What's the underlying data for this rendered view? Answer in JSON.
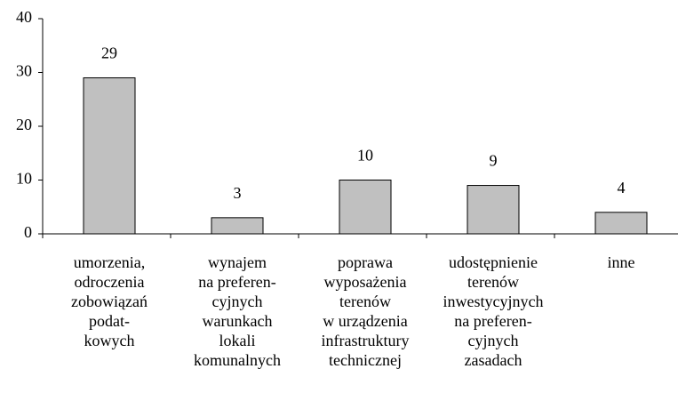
{
  "chart_data": {
    "type": "bar",
    "categories": [
      [
        "umorzenia,",
        "odroczenia",
        "zobowiązań",
        "podat-",
        "kowych"
      ],
      [
        "wynajem",
        "na preferen-",
        "cyjnych",
        "warunkach",
        "lokali",
        "komunalnych"
      ],
      [
        "poprawa",
        "wyposażenia",
        "terenów",
        "w urządzenia",
        "infrastruktury",
        "technicznej"
      ],
      [
        "udostępnienie",
        "terenów",
        "inwestycyjnych",
        "na preferen-",
        "cyjnych",
        "zasadach"
      ],
      [
        "inne"
      ]
    ],
    "values": [
      29,
      3,
      10,
      9,
      4
    ],
    "color": "#c0c0c0",
    "ylim": [
      0,
      40
    ],
    "yticks": [
      0,
      10,
      20,
      30,
      40
    ]
  }
}
